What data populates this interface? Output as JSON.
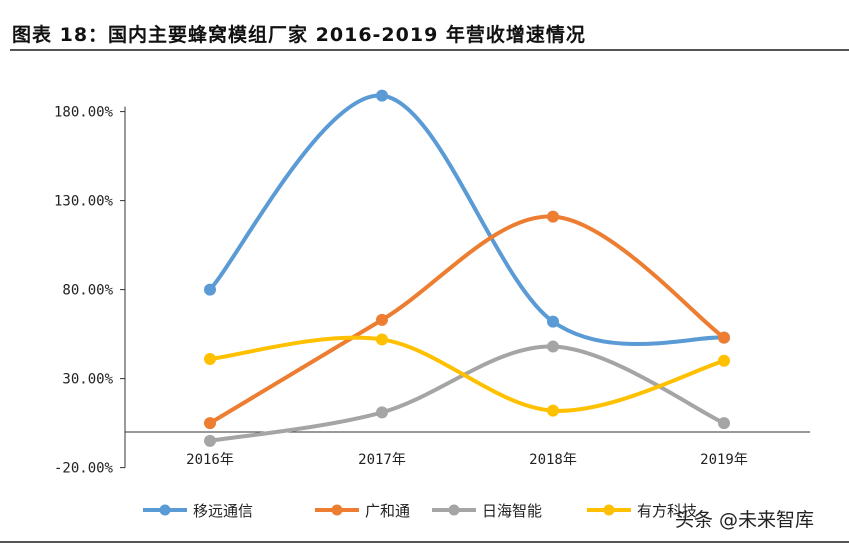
{
  "title": "图表 18：国内主要蜂窝模组厂家 2016-2019 年营收增速情况",
  "watermark": "头条 @未来智库",
  "chart_data": {
    "type": "line",
    "title": "图表 18：国内主要蜂窝模组厂家 2016-2019 年营收增速情况",
    "categories": [
      "2016年",
      "2017年",
      "2018年",
      "2019年"
    ],
    "yticks": [
      "-20.00%",
      "30.00%",
      "80.00%",
      "130.00%",
      "180.00%"
    ],
    "ytick_values": [
      -20,
      30,
      80,
      130,
      180
    ],
    "ylim": [
      -20,
      180
    ],
    "smooth": true,
    "grid": false,
    "legend": "bottom",
    "series": [
      {
        "name": "移远通信",
        "color": "#5B9BD5",
        "values": [
          80,
          189,
          62,
          53
        ]
      },
      {
        "name": "广和通",
        "color": "#ED7D31",
        "values": [
          5,
          63,
          121,
          53
        ]
      },
      {
        "name": "日海智能",
        "color": "#A5A5A5",
        "values": [
          -5,
          11,
          48,
          5
        ]
      },
      {
        "name": "有方科技",
        "color": "#FFC000",
        "values": [
          41,
          52,
          12,
          40
        ]
      }
    ]
  }
}
